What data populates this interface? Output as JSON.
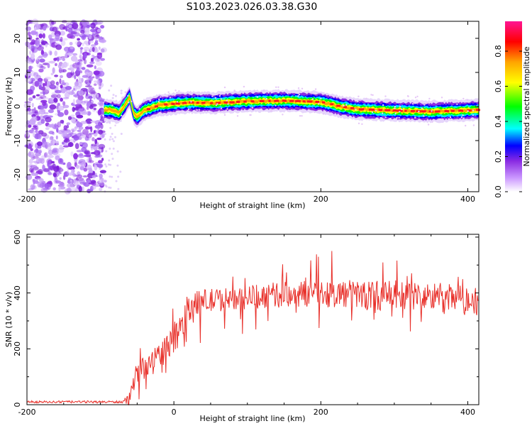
{
  "figure": {
    "title": "S103.2023.026.03.38.G30"
  },
  "chart_data": [
    {
      "type": "heatmap",
      "xlabel": "Height of straight line (km)",
      "ylabel": "Frequency (Hz)",
      "xlim": [
        -200,
        415
      ],
      "ylim": [
        -25,
        25
      ],
      "xticks": [
        -200,
        0,
        200,
        400
      ],
      "yticks": [
        -20,
        -10,
        0,
        10,
        20
      ],
      "noise_region_x": [
        -200,
        -95
      ],
      "track_region_x": [
        -95,
        415
      ],
      "ridge": {
        "x": [
          -95,
          -85,
          -75,
          -68,
          -60,
          -55,
          -50,
          -40,
          -20,
          0,
          20,
          50,
          100,
          150,
          200,
          225,
          250,
          300,
          350,
          415
        ],
        "y": [
          -1,
          -1,
          -2,
          0,
          3,
          -2,
          -3,
          -1,
          0.5,
          0.8,
          1.2,
          1,
          1.5,
          1.7,
          1.3,
          0,
          -0.8,
          -1.2,
          -1.5,
          -1
        ]
      },
      "colorbar": {
        "label": "Normalized spectral amplitude",
        "ticks": [
          0.0,
          0.2,
          0.4,
          0.6,
          0.8
        ],
        "range": [
          0,
          0.97
        ],
        "colors": [
          "#ffffff",
          "#8a2be2",
          "#0000ff",
          "#00ffff",
          "#00ff00",
          "#ffff00",
          "#ffa500",
          "#ff0000",
          "#ff00ff"
        ]
      }
    },
    {
      "type": "line",
      "xlabel": "Height of straight line (km)",
      "ylabel": "SNR (10 * v/v)",
      "xlim": [
        -200,
        415
      ],
      "ylim": [
        0,
        610
      ],
      "xticks": [
        -200,
        0,
        200,
        400
      ],
      "yticks": [
        0,
        200,
        400,
        600
      ],
      "color": "#e8302a",
      "envelope": {
        "x": [
          -200,
          -70,
          -60,
          -50,
          -40,
          -30,
          -20,
          -10,
          0,
          10,
          20,
          40,
          80,
          120,
          200,
          300,
          350,
          415
        ],
        "mean": [
          10,
          10,
          20,
          120,
          130,
          150,
          180,
          200,
          220,
          290,
          350,
          370,
          380,
          390,
          400,
          390,
          385,
          370
        ],
        "spread": [
          4,
          4,
          25,
          40,
          40,
          45,
          50,
          50,
          55,
          55,
          50,
          45,
          40,
          45,
          50,
          55,
          55,
          55
        ]
      },
      "max_value": 610
    }
  ]
}
